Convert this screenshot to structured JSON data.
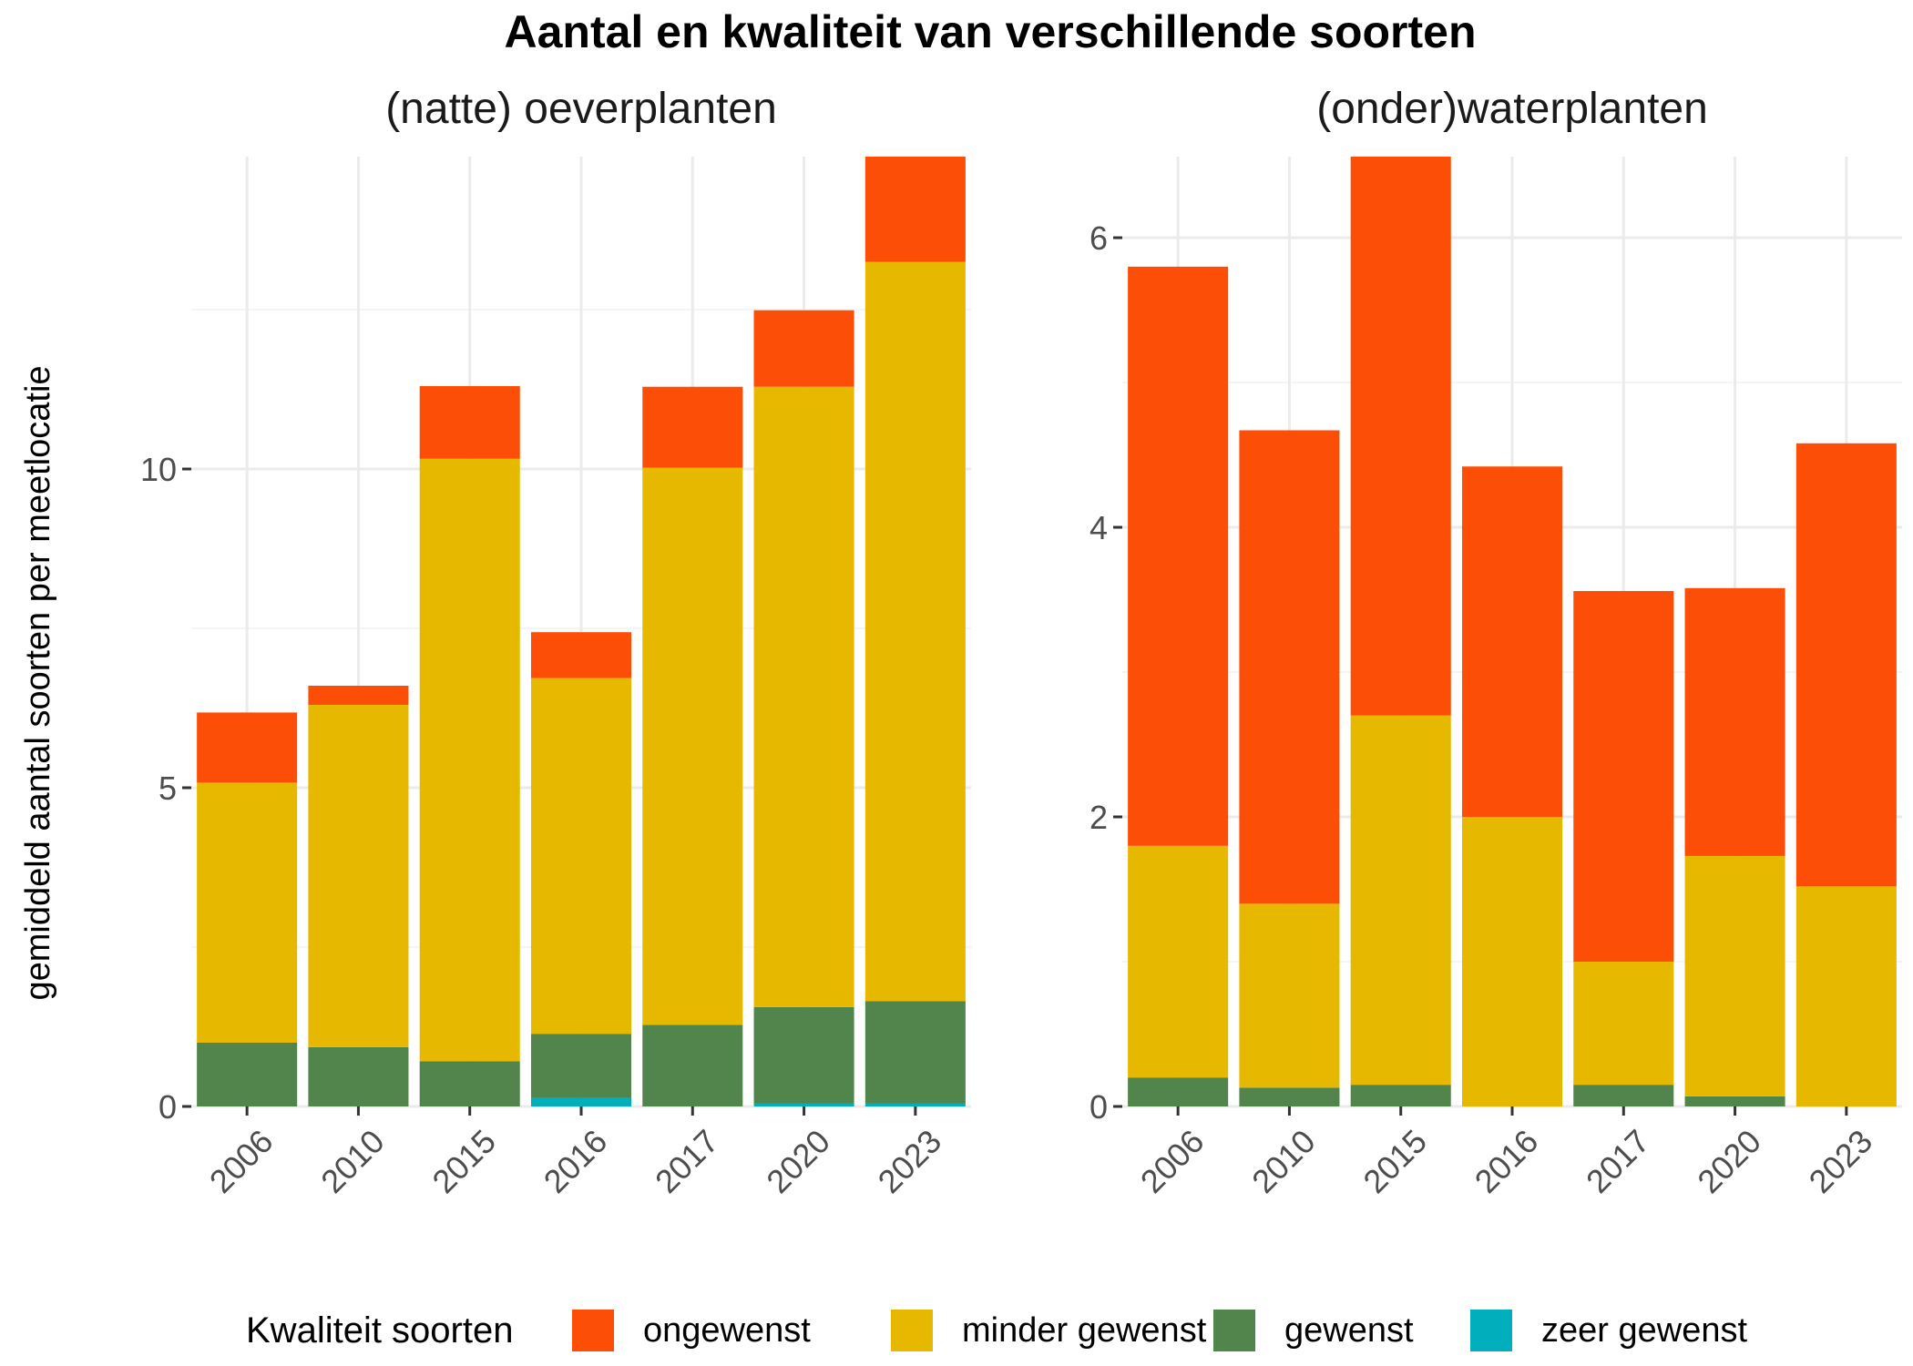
{
  "chart_data": {
    "type": "bar",
    "stacked": true,
    "title": "Aantal en kwaliteit van verschillende soorten",
    "ylabel": "gemiddeld aantal soorten per meetlocatie",
    "categories": [
      "2006",
      "2010",
      "2015",
      "2016",
      "2017",
      "2020",
      "2023"
    ],
    "grid": true,
    "legend": {
      "title": "Kwaliteit soorten",
      "position": "bottom",
      "entries": [
        "ongewenst",
        "minder gewenst",
        "gewenst",
        "zeer gewenst"
      ]
    },
    "colors": {
      "ongewenst": "#fc4e07",
      "minder gewenst": "#e7b800",
      "gewenst": "#52854c",
      "zeer gewenst": "#00afbb"
    },
    "panels": [
      {
        "title": "(natte) oeverplanten",
        "ylim": [
          0,
          14.9
        ],
        "yticks": [
          0,
          5,
          10
        ],
        "series": [
          {
            "name": "zeer gewenst",
            "values": [
              0,
              0,
              0,
              0.13,
              0,
              0.05,
              0.05
            ]
          },
          {
            "name": "gewenst",
            "values": [
              1.0,
              0.93,
              0.71,
              1.01,
              1.28,
              1.51,
              1.6
            ]
          },
          {
            "name": "minder gewenst",
            "values": [
              4.08,
              5.37,
              9.45,
              5.58,
              8.74,
              9.73,
              11.6
            ]
          },
          {
            "name": "ongewenst",
            "values": [
              1.1,
              0.3,
              1.14,
              0.72,
              1.27,
              1.2,
              1.65
            ]
          }
        ]
      },
      {
        "title": "(onder)waterplanten",
        "ylim": [
          0,
          6.56
        ],
        "yticks": [
          0,
          2,
          4,
          6
        ],
        "series": [
          {
            "name": "zeer gewenst",
            "values": [
              0,
              0,
              0,
              0,
              0,
              0,
              0
            ]
          },
          {
            "name": "gewenst",
            "values": [
              0.2,
              0.13,
              0.15,
              0,
              0.15,
              0.07,
              0
            ]
          },
          {
            "name": "minder gewenst",
            "values": [
              1.6,
              1.27,
              2.55,
              2.0,
              0.85,
              1.66,
              1.52
            ]
          },
          {
            "name": "ongewenst",
            "values": [
              4.0,
              3.27,
              3.86,
              2.42,
              2.56,
              1.85,
              3.06
            ]
          }
        ]
      }
    ]
  }
}
